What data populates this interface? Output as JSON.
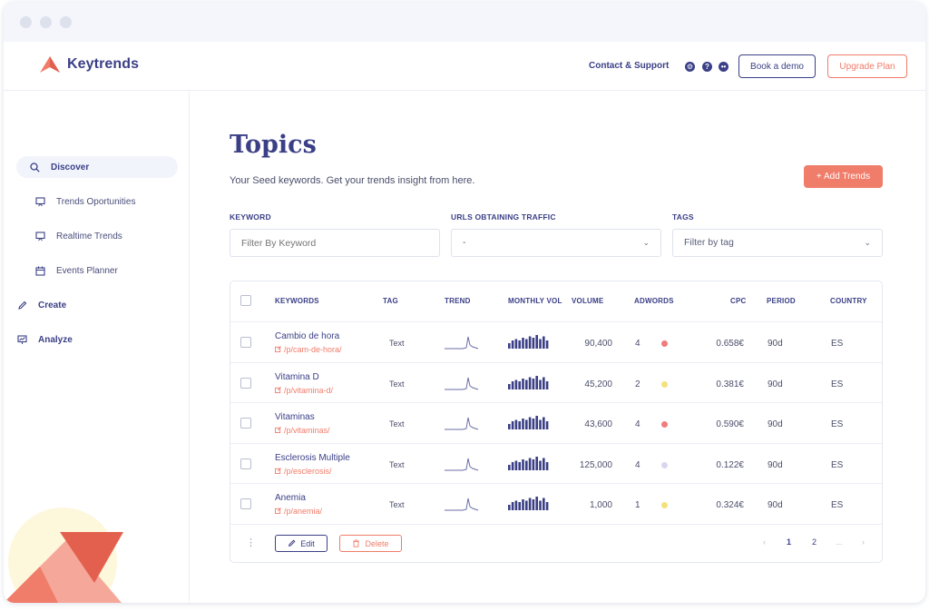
{
  "brand": {
    "name": "Keytrends",
    "accent": "#f07c6a",
    "primary": "#3a3f86"
  },
  "header": {
    "contact_label": "Contact & Support",
    "icons": [
      "gear-icon",
      "help-icon",
      "discord-icon"
    ],
    "demo_label": "Book a demo",
    "upgrade_label": "Upgrade Plan"
  },
  "sidebar": {
    "items": [
      {
        "label": "Discover",
        "icon": "search-icon",
        "active": true
      },
      {
        "label": "Trends Oportunities",
        "icon": "presentation-icon"
      },
      {
        "label": "Realtime Trends",
        "icon": "presentation-icon"
      },
      {
        "label": "Events Planner",
        "icon": "calendar-icon"
      },
      {
        "label": "Create",
        "icon": "pencil-icon"
      },
      {
        "label": "Analyze",
        "icon": "analytics-icon"
      }
    ]
  },
  "main": {
    "title": "Topics",
    "subtitle": "Your Seed keywords. Get your trends insight from here.",
    "add_label": "+ Add Trends"
  },
  "filters": {
    "keyword_label": "KEYWORD",
    "keyword_placeholder": "Filter By Keyword",
    "urls_label": "URLS OBTAINING TRAFFIC",
    "urls_value": "-",
    "tags_label": "TAGS",
    "tags_placeholder": "Filter by tag"
  },
  "table": {
    "headers": {
      "keywords": "KEYWORDS",
      "tag": "TAG",
      "trend": "TREND",
      "monthly": "MONTHLY VOL",
      "volume": "VOLUME",
      "adwords": "ADWORDS",
      "cpc": "CPC",
      "period": "PERIOD",
      "country": "COUNTRY"
    },
    "rows": [
      {
        "keyword": "Cambio de hora",
        "url": "/p/cam-de-hora/",
        "tag": "Text",
        "volume": "90,400",
        "adwords": "4",
        "adwords_color": "#f07c7c",
        "cpc": "0.658€",
        "period": "90d",
        "country": "ES"
      },
      {
        "keyword": "Vitamina D",
        "url": "/p/vitamina-d/",
        "tag": "Text",
        "volume": "45,200",
        "adwords": "2",
        "adwords_color": "#f3e27a",
        "cpc": "0.381€",
        "period": "90d",
        "country": "ES"
      },
      {
        "keyword": "Vitaminas",
        "url": "/p/vitaminas/",
        "tag": "Text",
        "volume": "43,600",
        "adwords": "4",
        "adwords_color": "#f07c7c",
        "cpc": "0.590€",
        "period": "90d",
        "country": "ES"
      },
      {
        "keyword": "Esclerosis Multiple",
        "url": "/p/esclerosis/",
        "tag": "Text",
        "volume": "125,000",
        "adwords": "4",
        "adwords_color": "#d8d6ee",
        "cpc": "0.122€",
        "period": "90d",
        "country": "ES"
      },
      {
        "keyword": "Anemia",
        "url": "/p/anemia/",
        "tag": "Text",
        "volume": "1,000",
        "adwords": "1",
        "adwords_color": "#f3e27a",
        "cpc": "0.324€",
        "period": "90d",
        "country": "ES"
      }
    ]
  },
  "footer": {
    "edit_label": "Edit",
    "delete_label": "Delete",
    "pages": [
      "1",
      "2",
      "..."
    ]
  }
}
